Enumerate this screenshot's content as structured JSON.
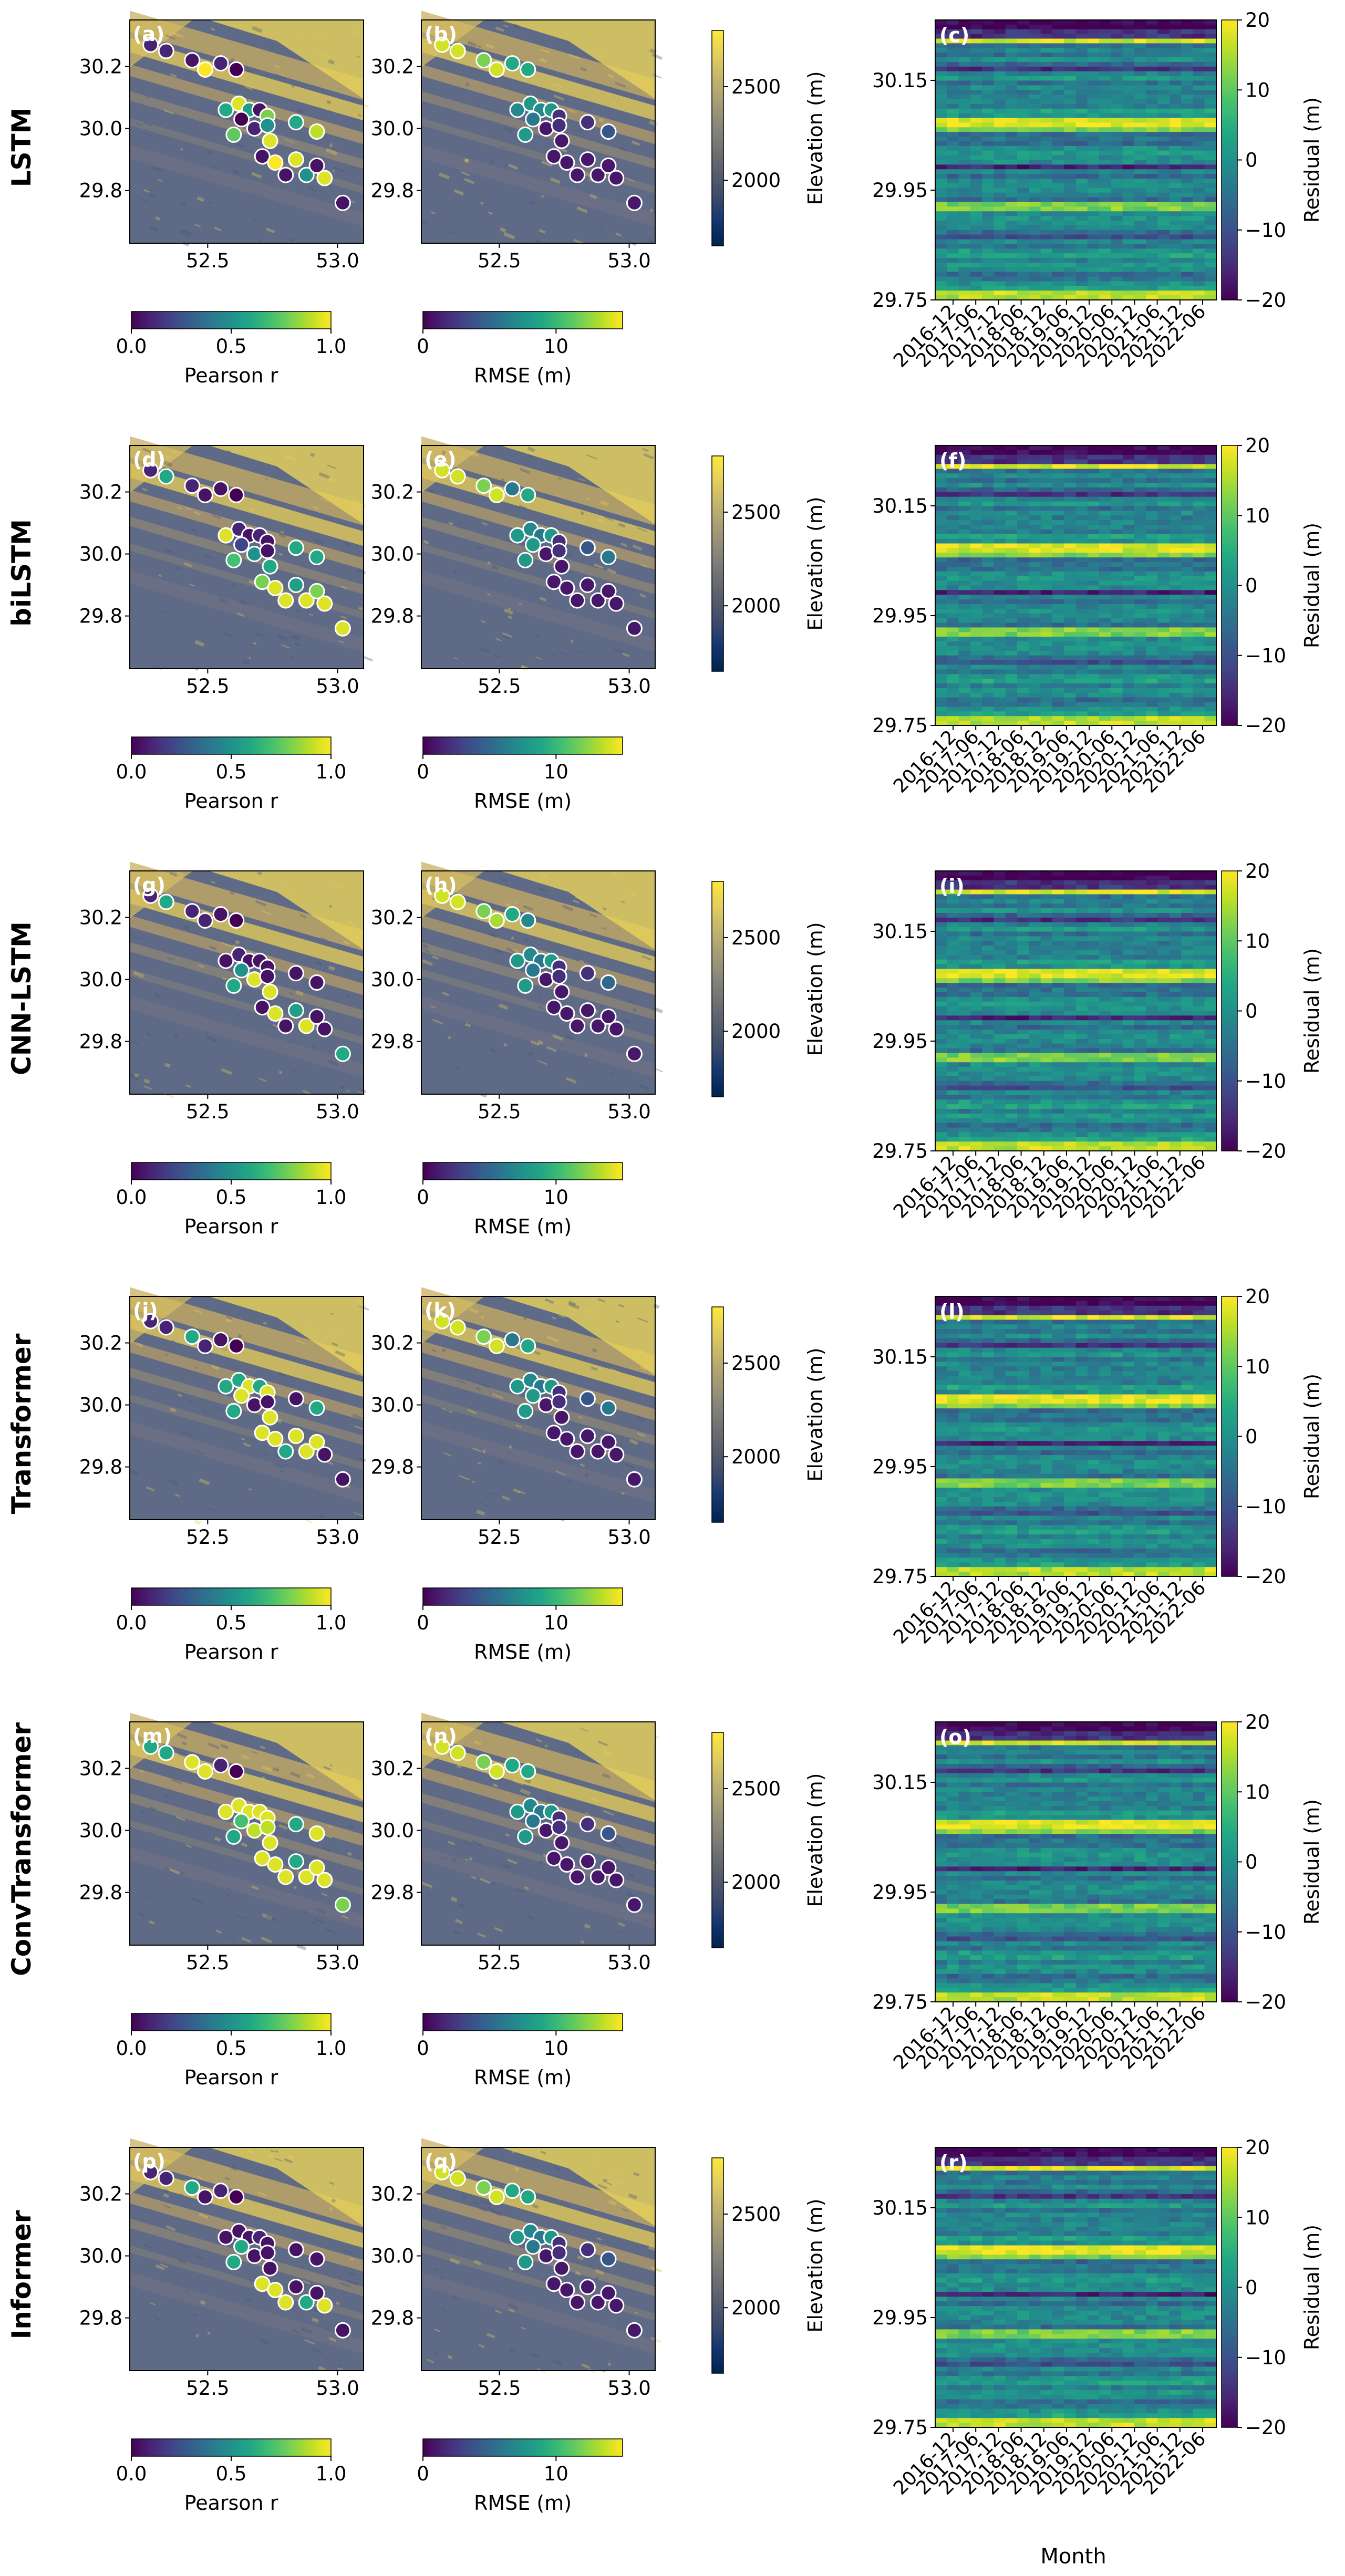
{
  "figure": {
    "xlabel_month": "Month",
    "colors": {
      "viridis": [
        "#440154",
        "#482475",
        "#414487",
        "#355f8d",
        "#2a788e",
        "#21918c",
        "#22a884",
        "#44bf70",
        "#7ad151",
        "#bddf26",
        "#fde725"
      ],
      "cividis": [
        "#00224e",
        "#123570",
        "#3b496c",
        "#575d6d",
        "#707173",
        "#8a8779",
        "#a69d75",
        "#c4b56c",
        "#e4cf5b",
        "#fee838"
      ],
      "marker_edge": "#ffffff",
      "frame": "#000000"
    }
  },
  "chart_data": {
    "type": "figure-grid",
    "map_panels": {
      "x_ticks": [
        "52.5",
        "53.0"
      ],
      "x_tick_values": [
        52.5,
        53.0
      ],
      "xlim": [
        52.2,
        53.1
      ],
      "y_ticks": [
        "30.2",
        "30.0",
        "29.8"
      ],
      "y_tick_values": [
        30.2,
        30.0,
        29.8
      ],
      "ylim": [
        29.63,
        30.35
      ],
      "stations": [
        {
          "lon": 52.28,
          "lat": 30.27
        },
        {
          "lon": 52.34,
          "lat": 30.25
        },
        {
          "lon": 52.44,
          "lat": 30.22
        },
        {
          "lon": 52.49,
          "lat": 30.19
        },
        {
          "lon": 52.55,
          "lat": 30.21
        },
        {
          "lon": 52.61,
          "lat": 30.19
        },
        {
          "lon": 52.57,
          "lat": 30.06
        },
        {
          "lon": 52.62,
          "lat": 30.08
        },
        {
          "lon": 52.66,
          "lat": 30.06
        },
        {
          "lon": 52.7,
          "lat": 30.06
        },
        {
          "lon": 52.73,
          "lat": 30.04
        },
        {
          "lon": 52.63,
          "lat": 30.03
        },
        {
          "lon": 52.68,
          "lat": 30.0
        },
        {
          "lon": 52.73,
          "lat": 30.01
        },
        {
          "lon": 52.6,
          "lat": 29.98
        },
        {
          "lon": 52.74,
          "lat": 29.96
        },
        {
          "lon": 52.71,
          "lat": 29.91
        },
        {
          "lon": 52.76,
          "lat": 29.89
        },
        {
          "lon": 52.8,
          "lat": 29.85
        },
        {
          "lon": 52.84,
          "lat": 29.9
        },
        {
          "lon": 52.88,
          "lat": 29.85
        },
        {
          "lon": 52.92,
          "lat": 29.88
        },
        {
          "lon": 52.95,
          "lat": 29.84
        },
        {
          "lon": 52.84,
          "lat": 30.02
        },
        {
          "lon": 52.92,
          "lat": 29.99
        },
        {
          "lon": 53.02,
          "lat": 29.76
        }
      ],
      "pearson_colorbar": {
        "label": "Pearson r",
        "range": [
          0.0,
          1.0
        ],
        "ticks": [
          "0.0",
          "0.5",
          "1.0"
        ],
        "tick_values": [
          0.0,
          0.5,
          1.0
        ]
      },
      "rmse_colorbar": {
        "label": "RMSE (m)",
        "range": [
          0,
          15
        ],
        "ticks": [
          "0",
          "10"
        ],
        "tick_values": [
          0,
          10
        ]
      },
      "elevation_colorbar": {
        "label": "Elevation (m)",
        "range": [
          1650,
          2800
        ],
        "ticks": [
          "2500",
          "2000"
        ],
        "tick_values": [
          2500,
          2000
        ]
      }
    },
    "residual_panels": {
      "y_ticks": [
        "30.15",
        "29.95",
        "29.75"
      ],
      "y_tick_values": [
        30.15,
        29.95,
        29.75
      ],
      "ylim": [
        29.75,
        30.26
      ],
      "x_ticks": [
        "2016-12",
        "2017-06",
        "2017-12",
        "2018-06",
        "2018-12",
        "2019-06",
        "2019-12",
        "2020-06",
        "2020-12",
        "2021-06",
        "2021-12",
        "2022-06"
      ],
      "colorbar": {
        "label": "Residual (m)",
        "range": [
          -20,
          20
        ],
        "ticks": [
          "20",
          "10",
          "0",
          "−10",
          "−20"
        ],
        "tick_values": [
          20,
          10,
          0,
          -10,
          -20
        ]
      }
    },
    "rows": [
      {
        "model": "LSTM",
        "panel_labels": {
          "pearson": "(a)",
          "rmse": "(b)",
          "residual": "(c)"
        },
        "pearson_values": [
          0.1,
          0.1,
          0.05,
          1.0,
          0.1,
          0.0,
          0.6,
          0.95,
          0.55,
          0.05,
          0.8,
          0.0,
          0.1,
          0.5,
          0.75,
          0.95,
          0.05,
          1.0,
          0.05,
          0.95,
          0.5,
          0.05,
          0.95,
          0.6,
          0.9,
          0.05
        ],
        "rmse_values": [
          14,
          14,
          12,
          14,
          9,
          9,
          7,
          8,
          7,
          8,
          2,
          6,
          1,
          2,
          8,
          1,
          1,
          1,
          1,
          1,
          1,
          1,
          1,
          2,
          4,
          1
        ]
      },
      {
        "model": "biLSTM",
        "panel_labels": {
          "pearson": "(d)",
          "rmse": "(e)",
          "residual": "(f)"
        },
        "pearson_values": [
          0.1,
          0.6,
          0.1,
          0.05,
          0.05,
          0.0,
          0.95,
          0.1,
          0.05,
          0.1,
          0.05,
          0.2,
          0.5,
          0.05,
          0.7,
          0.6,
          0.8,
          0.95,
          0.95,
          0.55,
          0.95,
          0.8,
          0.95,
          0.6,
          0.6,
          0.95
        ],
        "rmse_values": [
          14,
          14,
          12,
          14,
          6,
          9,
          8,
          7,
          6,
          8,
          2,
          8,
          1,
          2,
          8,
          1,
          1,
          1,
          1,
          1,
          1,
          1,
          1,
          4,
          6,
          1
        ]
      },
      {
        "model": "CNN-LSTM",
        "panel_labels": {
          "pearson": "(g)",
          "rmse": "(h)",
          "residual": "(i)"
        },
        "pearson_values": [
          0.1,
          0.6,
          0.1,
          0.1,
          0.05,
          0.0,
          0.05,
          0.1,
          0.05,
          0.05,
          0.05,
          0.5,
          0.95,
          0.05,
          0.6,
          0.95,
          0.05,
          0.95,
          0.05,
          0.55,
          0.95,
          0.05,
          0.05,
          0.05,
          0.05,
          0.6
        ],
        "rmse_values": [
          14,
          14,
          12,
          13,
          9,
          7,
          8,
          7,
          6,
          8,
          2,
          6,
          1,
          2,
          8,
          1,
          1,
          1,
          1,
          1,
          1,
          1,
          1,
          2,
          5,
          1
        ]
      },
      {
        "model": "Transformer",
        "panel_labels": {
          "pearson": "(j)",
          "rmse": "(k)",
          "residual": "(l)"
        },
        "pearson_values": [
          0.1,
          0.1,
          0.6,
          0.1,
          0.05,
          0.0,
          0.6,
          0.6,
          0.95,
          0.6,
          0.95,
          0.95,
          0.05,
          0.05,
          0.6,
          0.95,
          0.95,
          0.95,
          0.6,
          0.95,
          0.95,
          0.95,
          0.05,
          0.05,
          0.6,
          0.05
        ],
        "rmse_values": [
          14,
          14,
          12,
          14,
          6,
          9,
          8,
          7,
          6,
          8,
          2,
          8,
          1,
          2,
          8,
          1,
          1,
          1,
          1,
          1,
          1,
          1,
          1,
          4,
          6,
          1
        ]
      },
      {
        "model": "ConvTransformer",
        "panel_labels": {
          "pearson": "(m)",
          "rmse": "(n)",
          "residual": "(o)"
        },
        "pearson_values": [
          0.6,
          0.6,
          0.95,
          0.95,
          0.1,
          0.0,
          0.95,
          0.95,
          0.95,
          0.95,
          0.95,
          0.7,
          0.9,
          0.9,
          0.6,
          0.95,
          0.95,
          0.95,
          0.95,
          0.6,
          0.95,
          0.95,
          0.95,
          0.6,
          0.95,
          0.8
        ],
        "rmse_values": [
          14,
          14,
          12,
          14,
          9,
          9,
          8,
          7,
          6,
          8,
          2,
          6,
          1,
          2,
          8,
          1,
          1,
          1,
          1,
          1,
          1,
          1,
          1,
          2,
          4,
          1
        ]
      },
      {
        "model": "Informer",
        "panel_labels": {
          "pearson": "(p)",
          "rmse": "(q)",
          "residual": "(r)"
        },
        "pearson_values": [
          0.1,
          0.1,
          0.6,
          0.05,
          0.1,
          0.0,
          0.05,
          0.05,
          0.05,
          0.1,
          0.05,
          0.6,
          0.05,
          0.05,
          0.6,
          0.05,
          0.95,
          0.95,
          0.95,
          0.05,
          0.6,
          0.05,
          0.95,
          0.05,
          0.05,
          0.05
        ],
        "rmse_values": [
          14,
          14,
          12,
          14,
          9,
          9,
          8,
          7,
          6,
          8,
          2,
          6,
          1,
          2,
          8,
          1,
          1,
          1,
          1,
          1,
          1,
          1,
          1,
          2,
          4,
          1
        ]
      }
    ]
  }
}
